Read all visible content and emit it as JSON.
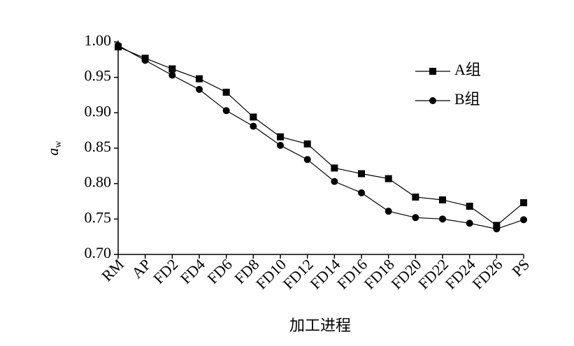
{
  "chart_data": {
    "type": "line",
    "xlabel": "加工进程",
    "ylabel": {
      "text": "a",
      "subscript": "w"
    },
    "categories": [
      "RM",
      "AP",
      "FD2",
      "FD4",
      "FD6",
      "FD8",
      "FD10",
      "FD12",
      "FD14",
      "FD16",
      "FD18",
      "FD20",
      "FD22",
      "FD24",
      "FD26",
      "PS"
    ],
    "series": [
      {
        "name": "A组",
        "color": "#000000",
        "marker": "square",
        "values": [
          0.993,
          0.977,
          0.962,
          0.948,
          0.929,
          0.894,
          0.866,
          0.856,
          0.822,
          0.814,
          0.807,
          0.781,
          0.777,
          0.768,
          0.741,
          0.773
        ]
      },
      {
        "name": "B组",
        "color": "#000000",
        "marker": "circle",
        "values": [
          0.995,
          0.974,
          0.953,
          0.933,
          0.903,
          0.881,
          0.854,
          0.834,
          0.803,
          0.787,
          0.761,
          0.752,
          0.75,
          0.744,
          0.736,
          0.749
        ]
      }
    ],
    "ylim": [
      0.7,
      1.0
    ],
    "yticks": [
      {
        "value": 0.7,
        "label": "0.70"
      },
      0.75,
      {
        "value": 0.8,
        "label": "0.80"
      },
      0.85,
      {
        "value": 0.9,
        "label": "0.90"
      },
      0.95,
      {
        "value": 1.0,
        "label": "1.00"
      }
    ],
    "grid": false,
    "legend": "upper right"
  }
}
